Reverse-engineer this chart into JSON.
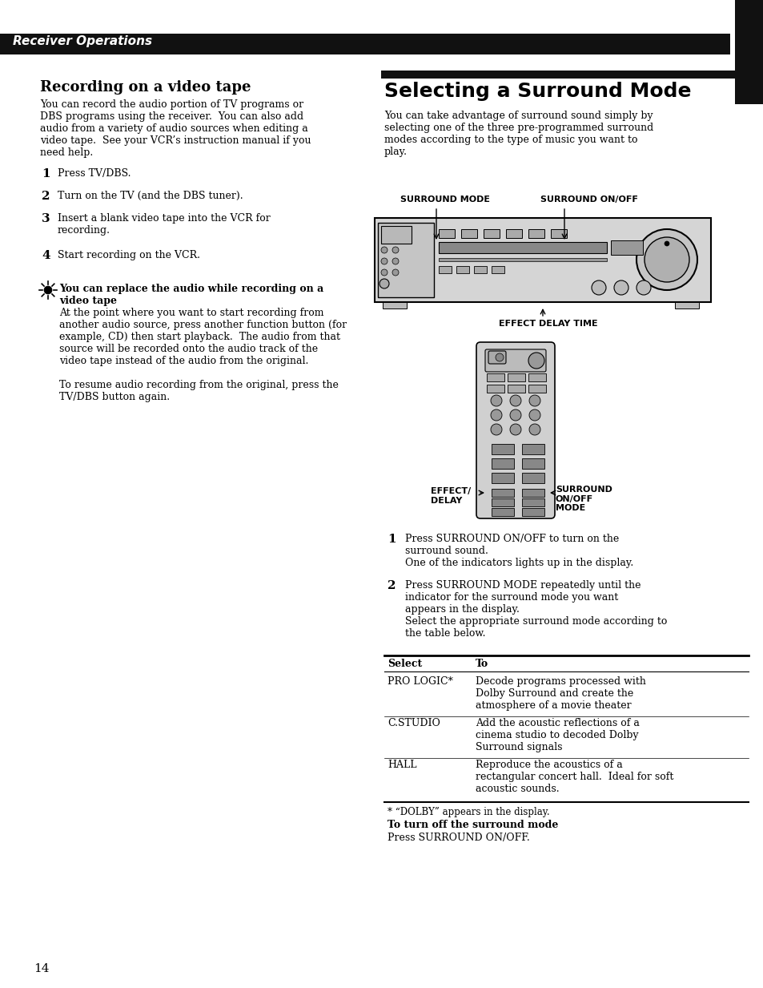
{
  "bg_color": "#ffffff",
  "header_bg": "#111111",
  "header_text": "Receiver Operations",
  "header_text_color": "#ffffff",
  "page_number": "14",
  "left_section_title": "Recording on a video tape",
  "left_intro": "You can record the audio portion of TV programs or\nDBS programs using the receiver.  You can also add\naudio from a variety of audio sources when editing a\nvideo tape.  See your VCR’s instruction manual if you\nneed help.",
  "left_steps": [
    {
      "num": "1",
      "text": "Press TV/DBS."
    },
    {
      "num": "2",
      "text": "Turn on the TV (and the DBS tuner)."
    },
    {
      "num": "3",
      "text": "Insert a blank video tape into the VCR for\nrecording."
    },
    {
      "num": "4",
      "text": "Start recording on the VCR."
    }
  ],
  "tip_title": "You can replace the audio while recording on a\nvideo tape",
  "tip_body": "At the point where you want to start recording from\nanother audio source, press another function button (for\nexample, CD) then start playback.  The audio from that\nsource will be recorded onto the audio track of the\nvideo tape instead of the audio from the original.\n\nTo resume audio recording from the original, press the\nTV/DBS button again.",
  "right_section_title": "Selecting a Surround Mode",
  "right_intro": "You can take advantage of surround sound simply by\nselecting one of the three pre-programmed surround\nmodes according to the type of music you want to\nplay.",
  "receiver_label_mode": "SURROUND MODE",
  "receiver_label_onoff": "SURROUND ON/OFF",
  "receiver_label_effect": "EFFECT DELAY TIME",
  "remote_label_effect": "EFFECT/\nDELAY",
  "remote_label_surround": "SURROUND\nON/OFF\nMODE",
  "right_steps": [
    {
      "num": "1",
      "text": "Press SURROUND ON/OFF to turn on the\nsurround sound.\nOne of the indicators lights up in the display."
    },
    {
      "num": "2",
      "text": "Press SURROUND MODE repeatedly until the\nindicator for the surround mode you want\nappears in the display.\nSelect the appropriate surround mode according to\nthe table below."
    }
  ],
  "table_header": [
    "Select",
    "To"
  ],
  "table_rows": [
    [
      "PRO LOGIC*",
      "Decode programs processed with\nDolby Surround and create the\natmosphere of a movie theater"
    ],
    [
      "C.STUDIO",
      "Add the acoustic reflections of a\ncinema studio to decoded Dolby\nSurround signals"
    ],
    [
      "HALL",
      "Reproduce the acoustics of a\nrectangular concert hall.  Ideal for soft\nacoustic sounds."
    ]
  ],
  "table_footnote": "* “DOLBY” appears in the display.",
  "turn_off_title": "To turn off the surround mode",
  "turn_off_text": "Press SURROUND ON/OFF."
}
